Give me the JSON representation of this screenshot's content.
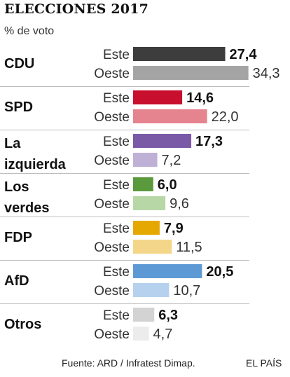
{
  "header": {
    "title": "ELECCIONES 2017",
    "subtitle": "% de voto"
  },
  "footer": {
    "source": "Fuente: ARD / Infratest Dimap.",
    "brand": "EL PAÍS"
  },
  "chart_data": {
    "type": "bar",
    "orientation": "horizontal",
    "title": "ELECCIONES 2017",
    "subtitle": "% de voto",
    "xlim": [
      0,
      40
    ],
    "grid": false,
    "legend": "none",
    "series_labels": [
      "Este",
      "Oeste"
    ],
    "categories": [
      {
        "label_lines": [
          "CDU"
        ],
        "este": 27.4,
        "oeste": 34.3,
        "este_label": "27,4",
        "oeste_label": "34,3",
        "este_color": "#3d3d3d",
        "oeste_color": "#a4a4a4"
      },
      {
        "label_lines": [
          "SPD"
        ],
        "este": 14.6,
        "oeste": 22.0,
        "este_label": "14,6",
        "oeste_label": "22,0",
        "este_color": "#c8102e",
        "oeste_color": "#e5838e"
      },
      {
        "label_lines": [
          "La",
          "izquierda"
        ],
        "este": 17.3,
        "oeste": 7.2,
        "este_label": "17,3",
        "oeste_label": "7,2",
        "este_color": "#7a59a6",
        "oeste_color": "#bfb0d6"
      },
      {
        "label_lines": [
          "Los",
          "verdes"
        ],
        "este": 6.0,
        "oeste": 9.6,
        "este_label": "6,0",
        "oeste_label": "9,6",
        "este_color": "#5a9a3c",
        "oeste_color": "#b7d7a6"
      },
      {
        "label_lines": [
          "FDP"
        ],
        "este": 7.9,
        "oeste": 11.5,
        "este_label": "7,9",
        "oeste_label": "11,5",
        "este_color": "#e5a800",
        "oeste_color": "#f3d68a"
      },
      {
        "label_lines": [
          "AfD"
        ],
        "este": 20.5,
        "oeste": 10.7,
        "este_label": "20,5",
        "oeste_label": "10,7",
        "este_color": "#5d99d4",
        "oeste_color": "#b5d1ee"
      },
      {
        "label_lines": [
          "Otros"
        ],
        "este": 6.3,
        "oeste": 4.7,
        "este_label": "6,3",
        "oeste_label": "4,7",
        "este_color": "#d3d3d3",
        "oeste_color": "#ececec"
      }
    ]
  }
}
